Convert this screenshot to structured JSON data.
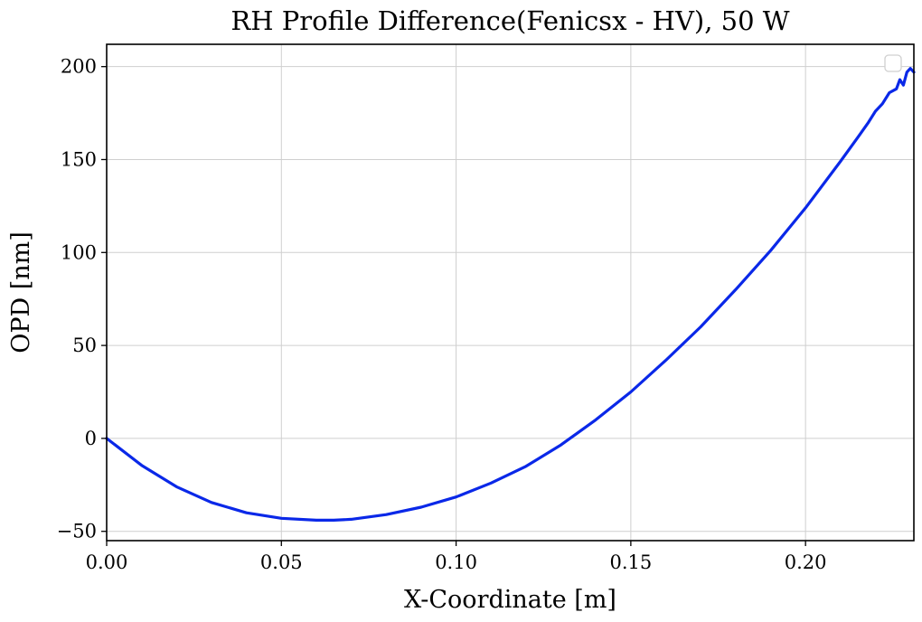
{
  "chart_data": {
    "type": "line",
    "title": "RH Profile Difference(Fenicsx - HV), 50 W",
    "xlabel": "X-Coordinate [m]",
    "ylabel": "OPD [nm]",
    "xlim": [
      0.0,
      0.231
    ],
    "ylim": [
      -55,
      212
    ],
    "xticks": [
      0.0,
      0.05,
      0.1,
      0.15,
      0.2
    ],
    "xtick_labels": [
      "0.00",
      "0.05",
      "0.10",
      "0.15",
      "0.20"
    ],
    "yticks": [
      -50,
      0,
      50,
      100,
      150,
      200
    ],
    "ytick_labels": [
      "−50",
      "0",
      "50",
      "100",
      "150",
      "200"
    ],
    "grid": true,
    "legend": {
      "placement": "top-right",
      "entries": []
    },
    "series": [
      {
        "color": "#0a28e8",
        "x": [
          0.0,
          0.01,
          0.02,
          0.03,
          0.04,
          0.05,
          0.06,
          0.065,
          0.07,
          0.08,
          0.09,
          0.1,
          0.11,
          0.12,
          0.13,
          0.14,
          0.15,
          0.16,
          0.17,
          0.18,
          0.19,
          0.2,
          0.21,
          0.215,
          0.218,
          0.22,
          0.222,
          0.224,
          0.226,
          0.227,
          0.228,
          0.229,
          0.23,
          0.231
        ],
        "values": [
          0,
          -14.5,
          -26,
          -34.5,
          -40,
          -43,
          -44,
          -44,
          -43.5,
          -41,
          -37,
          -31.5,
          -24,
          -15,
          -3.5,
          10,
          25,
          42,
          60,
          80,
          101,
          124,
          149,
          162,
          170,
          176,
          180,
          186,
          188,
          193,
          190,
          197,
          199,
          197
        ]
      }
    ]
  }
}
